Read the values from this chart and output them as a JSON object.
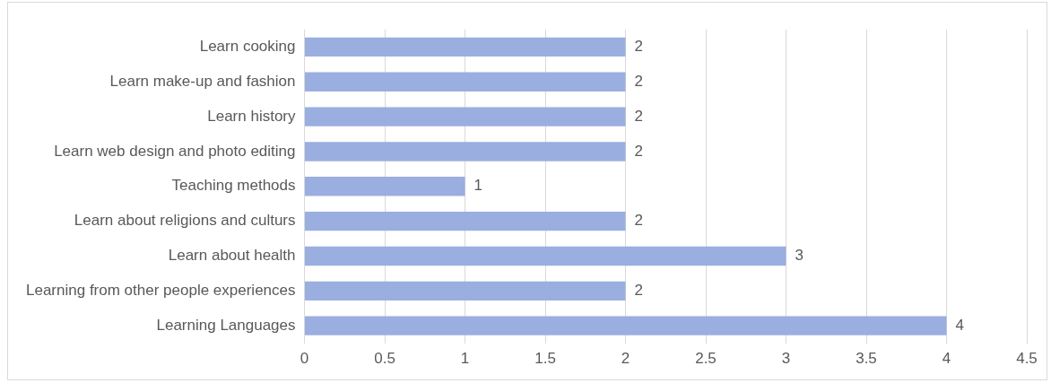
{
  "chart_data": {
    "type": "bar",
    "orientation": "horizontal",
    "categories": [
      "Learn cooking",
      "Learn make-up and fashion",
      "Learn history",
      "Learn web design and photo editing",
      "Teaching methods",
      "Learn about religions and culturs",
      "Learn about health",
      "Learning from other people experiences",
      "Learning Languages"
    ],
    "values": [
      2,
      2,
      2,
      2,
      1,
      2,
      3,
      2,
      4
    ],
    "color": "#9aaedf",
    "xlim": [
      0,
      4.5
    ],
    "xticks": [
      0,
      0.5,
      1,
      1.5,
      2,
      2.5,
      3,
      3.5,
      4,
      4.5
    ],
    "grid": "x",
    "data_labels": true
  }
}
